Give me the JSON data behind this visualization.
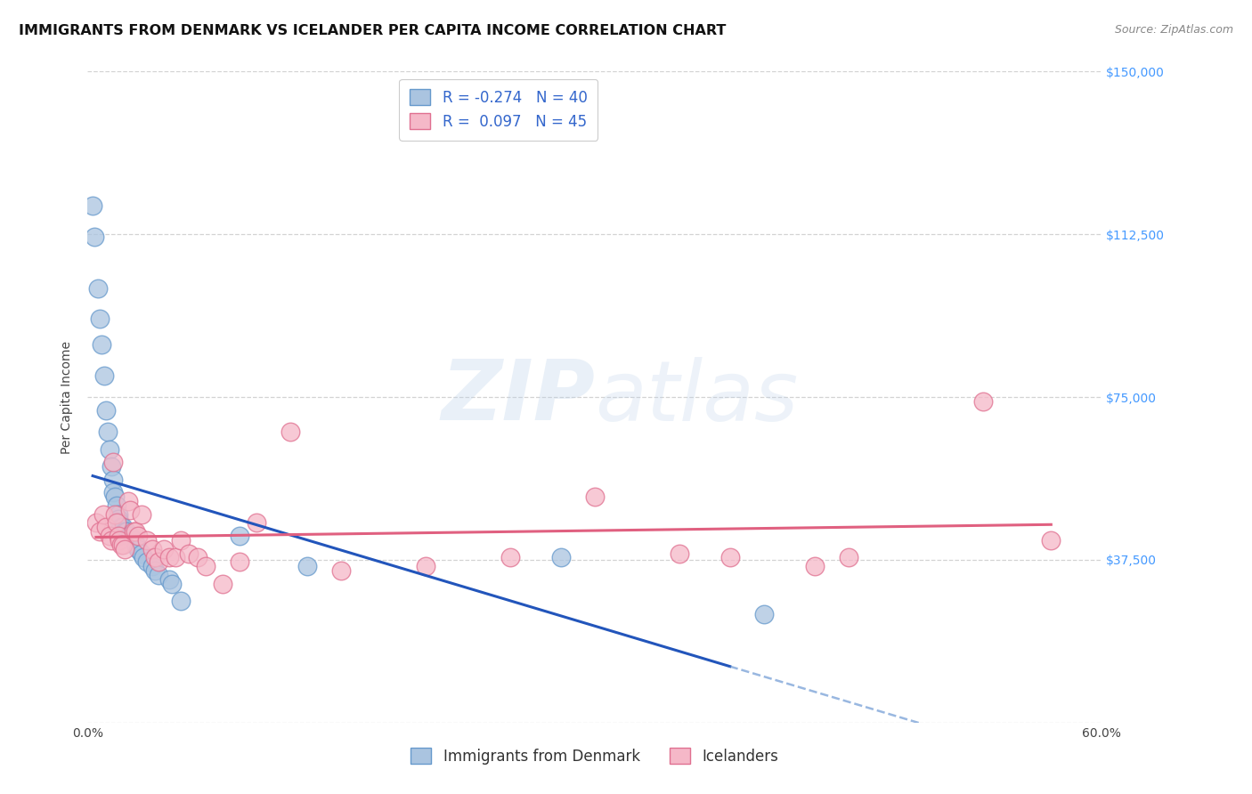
{
  "title": "IMMIGRANTS FROM DENMARK VS ICELANDER PER CAPITA INCOME CORRELATION CHART",
  "source": "Source: ZipAtlas.com",
  "ylabel": "Per Capita Income",
  "xlim": [
    0,
    0.6
  ],
  "ylim": [
    0,
    150000
  ],
  "yticks": [
    0,
    37500,
    75000,
    112500,
    150000
  ],
  "xticks": [
    0.0,
    0.1,
    0.2,
    0.3,
    0.4,
    0.5,
    0.6
  ],
  "background_color": "#ffffff",
  "grid_color": "#c8c8c8",
  "denmark_color": "#aac4e0",
  "denmark_edge": "#6699cc",
  "denmark_R": -0.274,
  "denmark_N": 40,
  "iceland_color": "#f5b8c8",
  "iceland_edge": "#e07090",
  "iceland_R": 0.097,
  "iceland_N": 45,
  "denmark_scatter_x": [
    0.003,
    0.004,
    0.006,
    0.007,
    0.008,
    0.01,
    0.011,
    0.012,
    0.013,
    0.014,
    0.015,
    0.015,
    0.016,
    0.017,
    0.018,
    0.018,
    0.019,
    0.02,
    0.021,
    0.022,
    0.023,
    0.024,
    0.025,
    0.027,
    0.028,
    0.029,
    0.03,
    0.032,
    0.033,
    0.035,
    0.038,
    0.04,
    0.042,
    0.048,
    0.05,
    0.055,
    0.09,
    0.13,
    0.28,
    0.4
  ],
  "denmark_scatter_y": [
    119000,
    112000,
    100000,
    93000,
    87000,
    80000,
    72000,
    67000,
    63000,
    59000,
    56000,
    53000,
    52000,
    50000,
    48000,
    47000,
    46000,
    45000,
    45000,
    44000,
    44000,
    43000,
    43000,
    42000,
    41000,
    41000,
    40000,
    39000,
    38000,
    37000,
    36000,
    35000,
    34000,
    33000,
    32000,
    28000,
    43000,
    36000,
    38000,
    25000
  ],
  "iceland_scatter_x": [
    0.005,
    0.007,
    0.009,
    0.011,
    0.013,
    0.014,
    0.015,
    0.016,
    0.017,
    0.018,
    0.019,
    0.02,
    0.021,
    0.022,
    0.024,
    0.025,
    0.027,
    0.028,
    0.03,
    0.032,
    0.035,
    0.038,
    0.04,
    0.042,
    0.045,
    0.048,
    0.052,
    0.055,
    0.06,
    0.065,
    0.07,
    0.08,
    0.09,
    0.1,
    0.12,
    0.15,
    0.2,
    0.25,
    0.3,
    0.35,
    0.38,
    0.43,
    0.45,
    0.53,
    0.57
  ],
  "iceland_scatter_y": [
    46000,
    44000,
    48000,
    45000,
    43000,
    42000,
    60000,
    48000,
    46000,
    43000,
    42000,
    41000,
    41000,
    40000,
    51000,
    49000,
    44000,
    44000,
    43000,
    48000,
    42000,
    40000,
    38000,
    37000,
    40000,
    38000,
    38000,
    42000,
    39000,
    38000,
    36000,
    32000,
    37000,
    46000,
    67000,
    35000,
    36000,
    38000,
    52000,
    39000,
    38000,
    36000,
    38000,
    74000,
    42000
  ],
  "legend_R_color": "#3366cc",
  "legend_label1": "Immigrants from Denmark",
  "legend_label2": "Icelanders",
  "title_fontsize": 11.5,
  "axis_label_fontsize": 10,
  "tick_fontsize": 10,
  "legend_fontsize": 12
}
